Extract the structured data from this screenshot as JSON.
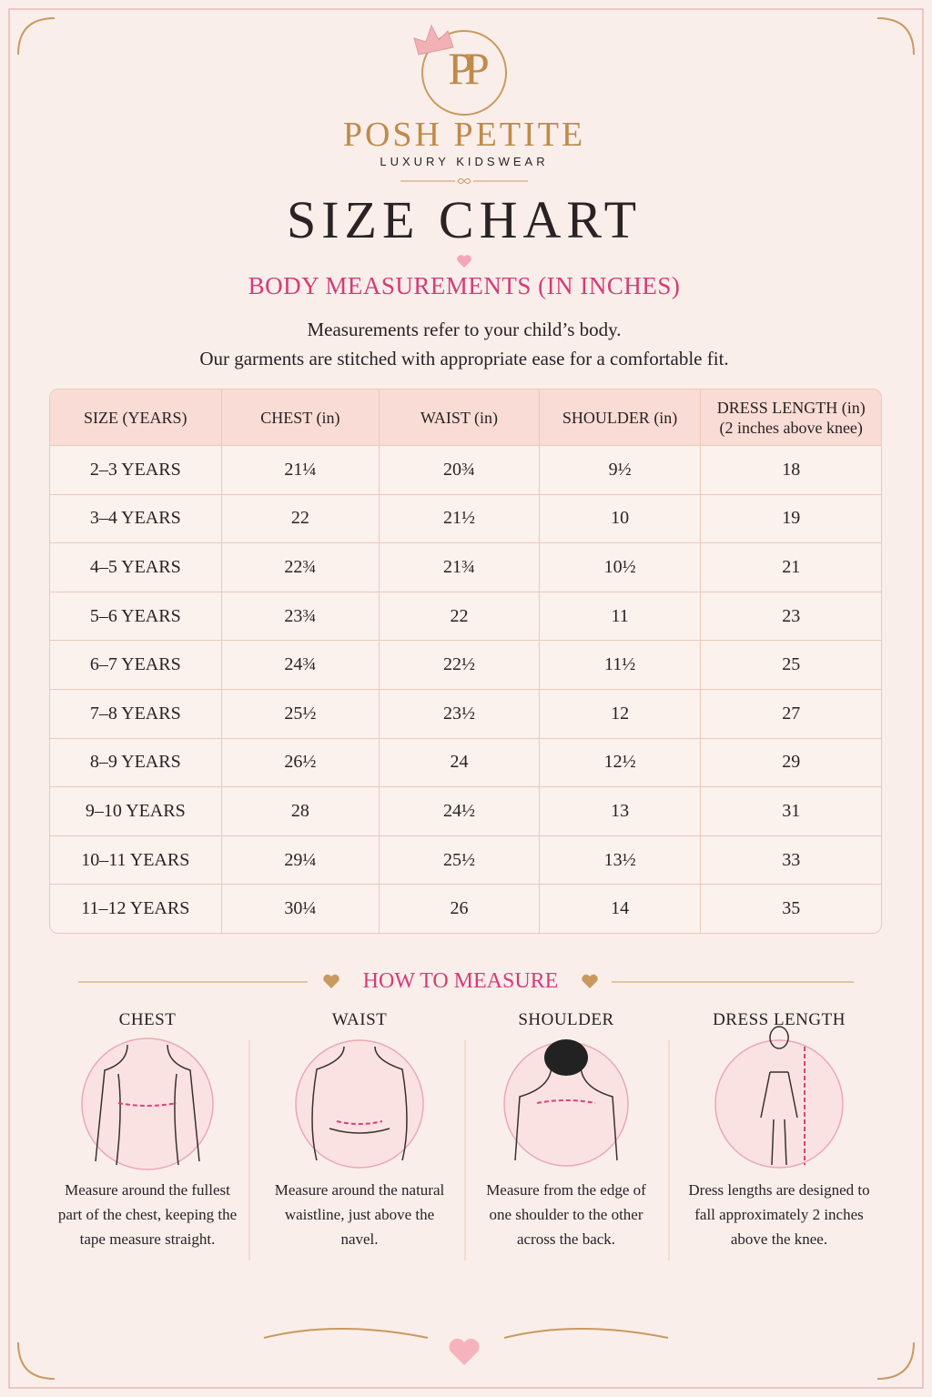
{
  "brand": {
    "monogram": "PP",
    "name": "POSH PETITE",
    "tagline": "LUXURY KIDSWEAR"
  },
  "title": "SIZE CHART",
  "subtitle": "BODY MEASUREMENTS (IN INCHES)",
  "intro": [
    "Measurements refer to your child’s body.",
    "Our garments are stitched with appropriate ease for a comfortable fit."
  ],
  "table": {
    "header": [
      "SIZE (YEARS)",
      "CHEST (in)",
      "WAIST (in)",
      "SHOULDER (in)",
      "DRESS LENGTH (in)"
    ],
    "header_note": "(2 inches above knee)",
    "rows": [
      [
        "2–3 YEARS",
        "21¼",
        "20¾",
        "9½",
        18
      ],
      [
        "3–4 YEARS",
        22,
        "21½",
        10,
        19
      ],
      [
        "4–5 YEARS",
        "22¾",
        "21¾",
        "10½",
        21
      ],
      [
        "5–6 YEARS",
        "23¾",
        22,
        11,
        23
      ],
      [
        "6–7 YEARS",
        "24¾",
        "22½",
        "11½",
        25
      ],
      [
        "7–8 YEARS",
        "25½",
        "23½",
        12,
        27
      ],
      [
        "8–9 YEARS",
        "26½",
        24,
        "12½",
        29
      ],
      [
        "9–10 YEARS",
        28,
        "24½",
        13,
        31
      ],
      [
        "10–11 YEARS",
        "29¼",
        "25½",
        "13½",
        33
      ],
      [
        "11–12 YEARS",
        "30¼",
        26,
        14,
        35
      ]
    ]
  },
  "how_to": {
    "title": "HOW TO MEASURE",
    "items": [
      {
        "label": "CHEST",
        "text": "Measure around the fullest part of the chest, keeping the tape measure straight."
      },
      {
        "label": "WAIST",
        "text": "Measure around the natural waistline, just above the navel."
      },
      {
        "label": "SHOULDER",
        "text": "Measure from the edge of one shoulder to the other across the back."
      },
      {
        "label": "DRESS LENGTH",
        "text": "Dress lengths are designed to fall approximately 2 inches above the knee."
      }
    ]
  }
}
